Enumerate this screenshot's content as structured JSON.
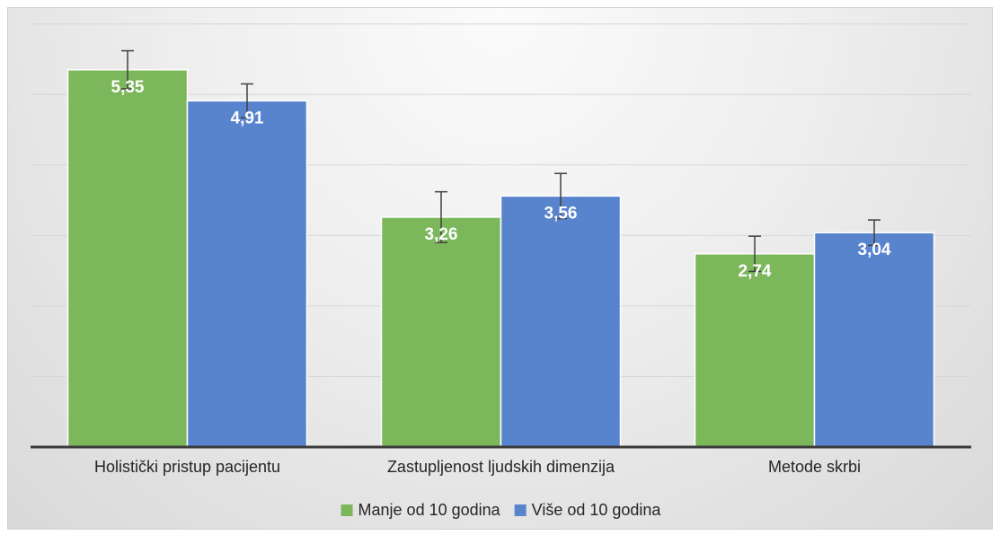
{
  "chart_data": {
    "type": "bar",
    "title": "",
    "xlabel": "",
    "ylabel": "",
    "categories": [
      "Holistički pristup pacijentu",
      "Zastupljenost ljudskih dimenzija",
      "Metode skrbi"
    ],
    "series": [
      {
        "name": "Manje od 10 godina",
        "color": "#7cb75c",
        "values": [
          5.35,
          3.26,
          2.74
        ],
        "value_labels": [
          "5,35",
          "3,26",
          "2,74"
        ],
        "error": [
          0.27,
          0.36,
          0.25
        ]
      },
      {
        "name": "Više od 10 godina",
        "color": "#5883cd",
        "values": [
          4.91,
          3.56,
          3.04
        ],
        "value_labels": [
          "4,91",
          "3,56",
          "3,04"
        ],
        "error": [
          0.24,
          0.32,
          0.18
        ]
      }
    ],
    "ylim": [
      0,
      6.2
    ],
    "grid": true,
    "legend_position": "bottom"
  }
}
